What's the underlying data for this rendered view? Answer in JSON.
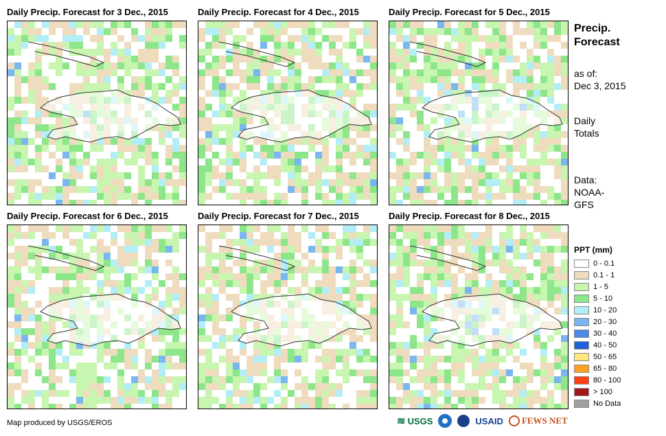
{
  "panels": [
    {
      "title": "Daily Precip. Forecast for 3 Dec., 2015",
      "seed": 3
    },
    {
      "title": "Daily Precip. Forecast for 4 Dec., 2015",
      "seed": 4
    },
    {
      "title": "Daily Precip. Forecast for 5 Dec., 2015",
      "seed": 5
    },
    {
      "title": "Daily Precip. Forecast for 6 Dec., 2015",
      "seed": 6
    },
    {
      "title": "Daily Precip. Forecast for 7 Dec., 2015",
      "seed": 7
    },
    {
      "title": "Daily Precip. Forecast for 8 Dec., 2015",
      "seed": 8
    }
  ],
  "side": {
    "heading_line1": "Precip.",
    "heading_line2": "Forecast",
    "asof_label": "as of:",
    "asof_date": "Dec 3, 2015",
    "daily1": "Daily",
    "daily2": "Totals",
    "data1": "Data:",
    "data2": "NOAA-",
    "data3": "GFS"
  },
  "legend": {
    "title": "PPT (mm)",
    "items": [
      {
        "label": "0 - 0.1",
        "color": "#ffffff"
      },
      {
        "label": "0.1 - 1",
        "color": "#efdcbe"
      },
      {
        "label": "1 - 5",
        "color": "#c8f5b0"
      },
      {
        "label": "5 - 10",
        "color": "#8ee68a"
      },
      {
        "label": "10 - 20",
        "color": "#b3eef6"
      },
      {
        "label": "20 - 30",
        "color": "#7ab6f0"
      },
      {
        "label": "30 - 40",
        "color": "#4a8ae6"
      },
      {
        "label": "40 - 50",
        "color": "#1f5fd8"
      },
      {
        "label": "50 - 65",
        "color": "#ffe680"
      },
      {
        "label": "65 - 80",
        "color": "#ffa020"
      },
      {
        "label": "80 - 100",
        "color": "#ff4010"
      },
      {
        "label": "> 100",
        "color": "#a01818"
      },
      {
        "label": "No Data",
        "color": "#a0a0a0"
      }
    ]
  },
  "footer": {
    "credit": "Map produced by USGS/EROS",
    "logo_usgs": "USGS",
    "logo_usaid": "USAID",
    "logo_fews": "FEWS NET"
  },
  "colors": {
    "outline": "#333333"
  }
}
